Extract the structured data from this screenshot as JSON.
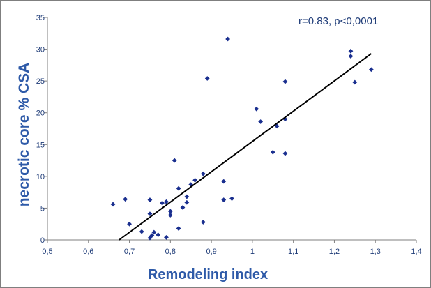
{
  "chart_data": {
    "type": "scatter",
    "title": "",
    "xlabel": "Remodeling index",
    "ylabel": "necrotic core % CSA",
    "annotation": "r=0.83, p<0,0001",
    "xlim": [
      0.5,
      1.4
    ],
    "ylim": [
      0,
      35
    ],
    "x_ticks": [
      "0,5",
      "0,6",
      "0,7",
      "0,8",
      "0,9",
      "1",
      "1,1",
      "1,2",
      "1,3",
      "1,4"
    ],
    "y_ticks": [
      "0",
      "5",
      "10",
      "15",
      "20",
      "25",
      "30",
      "35"
    ],
    "grid": false,
    "legend": "none",
    "colors": {
      "points": "#1a2f8f",
      "trendline": "#000000",
      "axis_title": "#2e5aa8",
      "tick_text": "#1f3c78"
    },
    "series": [
      {
        "points": [
          [
            0.66,
            5.6
          ],
          [
            0.69,
            6.4
          ],
          [
            0.7,
            2.5
          ],
          [
            0.73,
            1.3
          ],
          [
            0.75,
            6.3
          ],
          [
            0.75,
            4.1
          ],
          [
            0.75,
            0.3
          ],
          [
            0.755,
            0.7
          ],
          [
            0.76,
            1.2
          ],
          [
            0.77,
            0.8
          ],
          [
            0.78,
            5.8
          ],
          [
            0.79,
            6.0
          ],
          [
            0.79,
            0.4
          ],
          [
            0.8,
            3.9
          ],
          [
            0.8,
            4.5
          ],
          [
            0.81,
            12.5
          ],
          [
            0.82,
            8.1
          ],
          [
            0.82,
            1.8
          ],
          [
            0.83,
            5.1
          ],
          [
            0.84,
            5.9
          ],
          [
            0.84,
            6.8
          ],
          [
            0.85,
            8.7
          ],
          [
            0.86,
            9.4
          ],
          [
            0.88,
            10.4
          ],
          [
            0.88,
            2.8
          ],
          [
            0.89,
            25.4
          ],
          [
            0.93,
            9.2
          ],
          [
            0.93,
            6.3
          ],
          [
            0.94,
            31.6
          ],
          [
            0.95,
            6.5
          ],
          [
            1.01,
            20.6
          ],
          [
            1.02,
            18.6
          ],
          [
            1.05,
            13.8
          ],
          [
            1.06,
            17.9
          ],
          [
            1.08,
            19.0
          ],
          [
            1.08,
            13.6
          ],
          [
            1.08,
            24.9
          ],
          [
            1.24,
            29.7
          ],
          [
            1.24,
            28.9
          ],
          [
            1.25,
            24.8
          ],
          [
            1.29,
            26.8
          ]
        ]
      }
    ],
    "trendline": {
      "x": [
        0.675,
        1.29
      ],
      "y": [
        0,
        29.3
      ]
    }
  }
}
